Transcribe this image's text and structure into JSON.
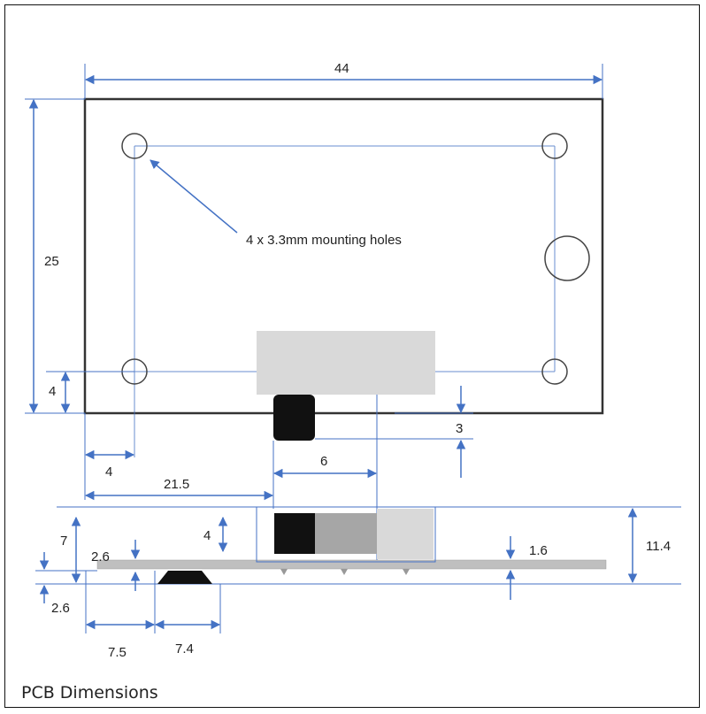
{
  "caption": "PCB Dimensions",
  "note": "4 x 3.3mm mounting holes",
  "dimensions": {
    "board_width": "44",
    "board_height": "25",
    "hole_offset_y": "4",
    "hole_offset_x": "4",
    "connector_gap": "3",
    "connector_width": "6",
    "connector_offset": "21.5",
    "overall_height_left": "7",
    "header_height": "4",
    "standoff_top": "2.6",
    "standoff_bottom": "2.6",
    "pcb_thickness": "1.6",
    "overall_height_right": "11.4",
    "component_offset": "7.5",
    "component_width": "7.4"
  },
  "colors": {
    "dimension_line": "#4472c4",
    "outline": "#333333",
    "connector_body": "#d9d9d9",
    "connector_plug": "#111111",
    "connector_mid": "#a6a6a6",
    "pcb_side": "#bfbfbf"
  }
}
